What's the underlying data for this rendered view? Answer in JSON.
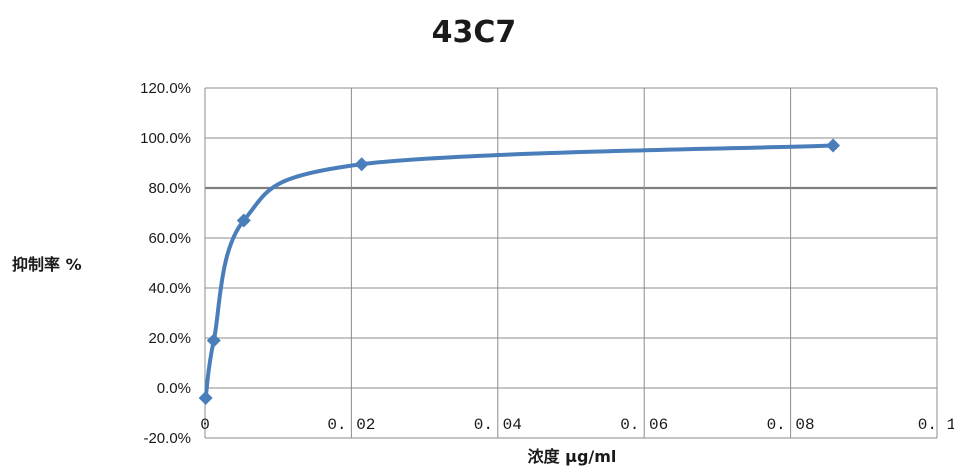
{
  "chart_data": {
    "type": "line",
    "title": "43C7",
    "xlabel": "浓度 μg/ml",
    "ylabel": "抑制率 %",
    "xlim": [
      0,
      0.1
    ],
    "ylim": [
      -20,
      120
    ],
    "x_ticks": [
      0,
      0.02,
      0.04,
      0.06,
      0.08,
      0.1
    ],
    "x_tick_labels": [
      "0",
      "0. 02",
      "0. 04",
      "0. 06",
      "0. 08",
      "0. 1"
    ],
    "y_ticks": [
      -20,
      0,
      20,
      40,
      60,
      80,
      100,
      120
    ],
    "y_tick_labels": [
      "-20.0%",
      "0.0%",
      "20.0%",
      "40.0%",
      "60.0%",
      "80.0%",
      "100.0%",
      "120.0%"
    ],
    "grid": true,
    "legend": "none",
    "smooth": true,
    "series": [
      {
        "color": "#4a7ebb",
        "marker": "diamond",
        "points": [
          {
            "x": 9e-05,
            "y": -4
          },
          {
            "x": 0.0012,
            "y": 19
          },
          {
            "x": 0.0053,
            "y": 67
          },
          {
            "x": 0.0214,
            "y": 89.5
          },
          {
            "x": 0.0858,
            "y": 97
          }
        ]
      }
    ],
    "emphasized_gridline": 80
  }
}
